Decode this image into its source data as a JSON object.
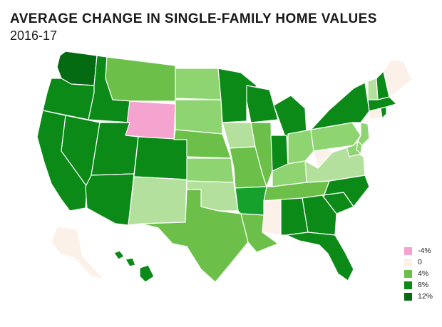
{
  "title": "AVERAGE CHANGE IN SINGLE-FAMILY HOME VALUES",
  "subtitle": "2016-17",
  "legend": [
    {
      "label": "-4%",
      "color": "#f5a3cf"
    },
    {
      "label": "0",
      "color": "#fbf1e8"
    },
    {
      "label": "4%",
      "color": "#6cc04a"
    },
    {
      "label": "8%",
      "color": "#0c8a18"
    },
    {
      "label": "12%",
      "color": "#056b12"
    }
  ],
  "palette": {
    "-4": "#f5a3cf",
    "0": "#fbf1e8",
    "2": "#b4e09e",
    "3": "#8ed471",
    "4": "#6cc04a",
    "6": "#16a02c",
    "8": "#0c8a18",
    "12": "#056b12"
  },
  "states": {
    "WA": 12,
    "OR": 8,
    "CA": 8,
    "NV": 8,
    "ID": 8,
    "MT": 4,
    "WY": -4,
    "UT": 8,
    "AZ": 8,
    "CO": 8,
    "NM": 2,
    "ND": 3,
    "SD": 3,
    "NE": 4,
    "KS": 3,
    "OK": 2,
    "TX": 4,
    "MN": 8,
    "IA": 2,
    "MO": 4,
    "AR": 6,
    "LA": 4,
    "WI": 8,
    "IL": 4,
    "MI": 8,
    "IN": 8,
    "OH": 3,
    "KY": 3,
    "TN": 4,
    "MS": 0,
    "AL": 8,
    "GA": 8,
    "FL": 8,
    "SC": 8,
    "NC": 8,
    "VA": 2,
    "WV": 0,
    "PA": 3,
    "NY": 8,
    "NJ": 3,
    "DE": 3,
    "MD": 3,
    "CT": 0,
    "RI": 8,
    "MA": 8,
    "VT": 2,
    "NH": 8,
    "ME": 0,
    "AK": 0,
    "HI": 8
  }
}
